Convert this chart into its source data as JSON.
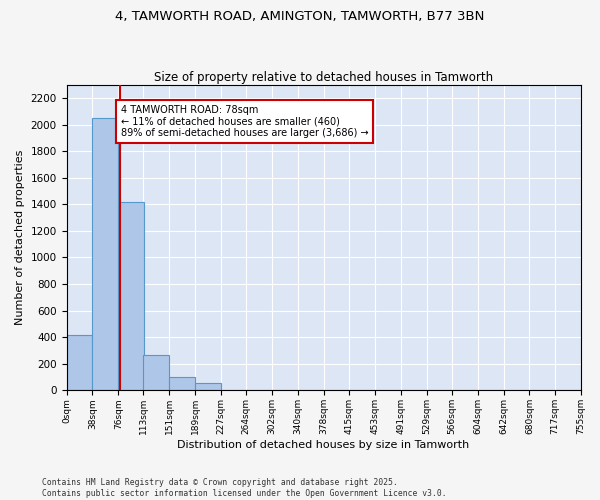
{
  "title1": "4, TAMWORTH ROAD, AMINGTON, TAMWORTH, B77 3BN",
  "title2": "Size of property relative to detached houses in Tamworth",
  "xlabel": "Distribution of detached houses by size in Tamworth",
  "ylabel": "Number of detached properties",
  "bin_edges": [
    0,
    38,
    76,
    113,
    151,
    189,
    227,
    264,
    302,
    340,
    378,
    415,
    453,
    491,
    529,
    566,
    604,
    642,
    680,
    717,
    755
  ],
  "bar_heights": [
    420,
    2050,
    1420,
    270,
    100,
    55,
    0,
    0,
    0,
    0,
    0,
    0,
    0,
    0,
    0,
    0,
    0,
    0,
    0,
    0
  ],
  "bar_color": "#aec6e8",
  "bar_edgecolor": "#5599cc",
  "background_color": "#dce6f5",
  "fig_background": "#f5f5f5",
  "grid_color": "#ffffff",
  "ylim": [
    0,
    2300
  ],
  "yticks": [
    0,
    200,
    400,
    600,
    800,
    1000,
    1200,
    1400,
    1600,
    1800,
    2000,
    2200
  ],
  "property_size": 78,
  "vline_color": "#cc0000",
  "annotation_line1": "4 TAMWORTH ROAD: 78sqm",
  "annotation_line2": "← 11% of detached houses are smaller (460)",
  "annotation_line3": "89% of semi-detached houses are larger (3,686) →",
  "annotation_box_color": "#cc0000",
  "footnote1": "Contains HM Land Registry data © Crown copyright and database right 2025.",
  "footnote2": "Contains public sector information licensed under the Open Government Licence v3.0."
}
